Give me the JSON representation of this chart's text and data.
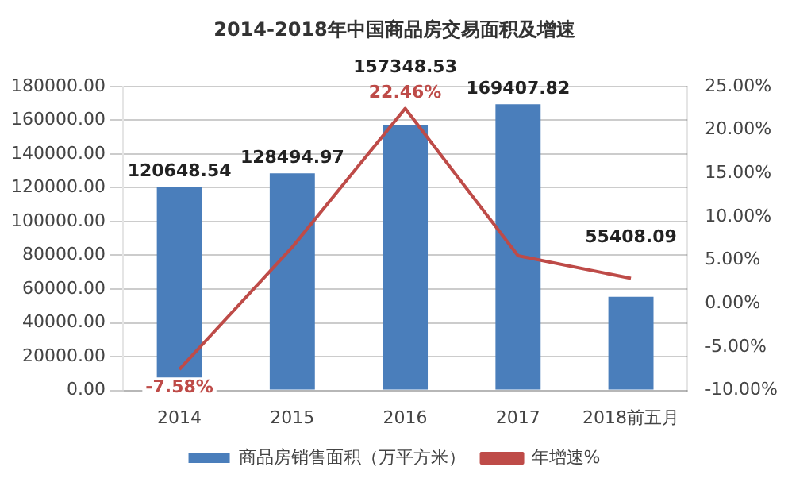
{
  "chart_data": {
    "type": "bar",
    "title": "2014-2018年中国商品房交易面积及增速",
    "categories": [
      "2014",
      "2015",
      "2016",
      "2017",
      "2018前五月"
    ],
    "series": [
      {
        "name": "商品房销售面积（万平方米）",
        "color": "#4a7ebb",
        "values": [
          120648.54,
          128494.97,
          157348.53,
          169407.82,
          55408.09
        ],
        "value_labels": [
          "120648.54",
          "128494.97",
          "157348.53",
          "169407.82",
          "55408.09"
        ]
      },
      {
        "name": "年增速%",
        "type": "line",
        "axis": "y2",
        "color": "#be4b48",
        "values": [
          -7.58,
          6.5,
          22.46,
          5.5,
          2.9
        ],
        "value_labels": [
          "-7.58%",
          null,
          "22.46%",
          null,
          null
        ]
      }
    ],
    "ylim": [
      0,
      180000
    ],
    "yticks": [
      {
        "value": 0,
        "label": "0.00"
      },
      {
        "value": 20000,
        "label": "20000.00"
      },
      {
        "value": 40000,
        "label": "40000.00"
      },
      {
        "value": 60000,
        "label": "60000.00"
      },
      {
        "value": 80000,
        "label": "80000.00"
      },
      {
        "value": 100000,
        "label": "100000.00"
      },
      {
        "value": 120000,
        "label": "120000.00"
      },
      {
        "value": 140000,
        "label": "140000.00"
      },
      {
        "value": 160000,
        "label": "160000.00"
      },
      {
        "value": 180000,
        "label": "180000.00"
      }
    ],
    "y2lim": [
      -10,
      25
    ],
    "y2ticks": [
      {
        "value": -10,
        "label": "-10.00%"
      },
      {
        "value": -5,
        "label": "-5.00%"
      },
      {
        "value": 0,
        "label": "0.00%"
      },
      {
        "value": 5,
        "label": "5.00%"
      },
      {
        "value": 10,
        "label": "10.00%"
      },
      {
        "value": 15,
        "label": "15.00%"
      },
      {
        "value": 20,
        "label": "20.00%"
      },
      {
        "value": 25,
        "label": "25.00%"
      }
    ],
    "grid": "y",
    "legend": "bottom",
    "marker": "none"
  }
}
